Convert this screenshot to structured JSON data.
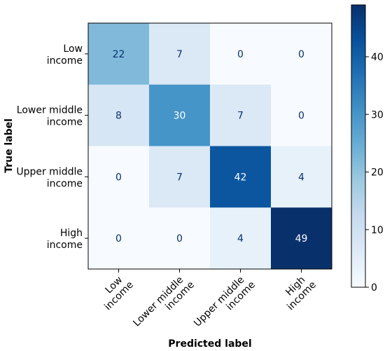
{
  "chart_data": {
    "type": "heatmap",
    "title": "",
    "xlabel": "Predicted label",
    "ylabel": "True label",
    "row_labels": [
      [
        "Low",
        "income"
      ],
      [
        "Lower middle",
        "income"
      ],
      [
        "Upper middle",
        "income"
      ],
      [
        "High",
        "income"
      ]
    ],
    "col_labels": [
      [
        "Low",
        "income"
      ],
      [
        "Lower middle",
        "income"
      ],
      [
        "Upper middle",
        "income"
      ],
      [
        "High",
        "income"
      ]
    ],
    "values": [
      [
        22,
        7,
        0,
        0
      ],
      [
        8,
        30,
        7,
        0
      ],
      [
        0,
        7,
        42,
        4
      ],
      [
        0,
        0,
        4,
        49
      ]
    ],
    "colorbar": {
      "range": [
        0,
        49
      ],
      "ticks": [
        "0",
        "10",
        "20",
        "30",
        "40"
      ],
      "tick_values": [
        0,
        10,
        20,
        30,
        40
      ]
    },
    "colormap": "Blues",
    "text_color_light": "#ffffff",
    "text_color_dark": "#08306b"
  }
}
